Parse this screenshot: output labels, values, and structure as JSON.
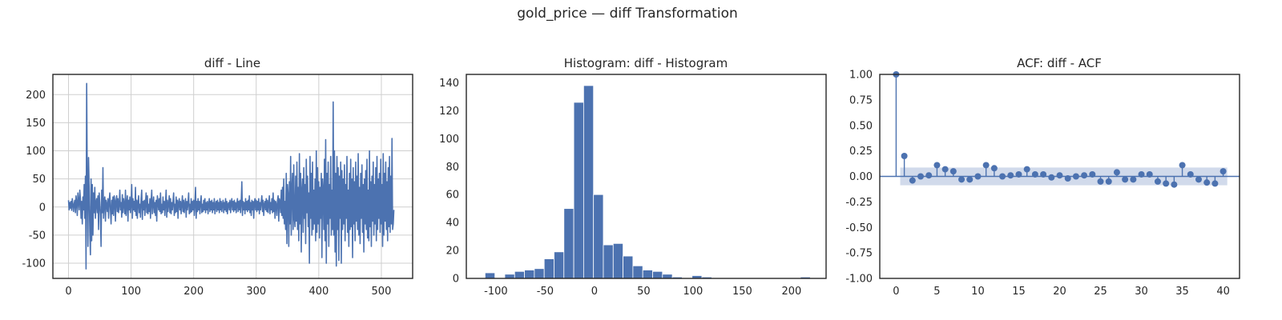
{
  "figure": {
    "suptitle": "gold_price — diff Transformation"
  },
  "colors": {
    "series": "#4c72b0",
    "band": "#c9d4e8",
    "frame": "#262626",
    "grid": "#cfcfcf"
  },
  "chart_data": [
    {
      "type": "line",
      "title": "diff - Line",
      "xlabel": "",
      "ylabel": "",
      "xlim": [
        -25,
        550
      ],
      "ylim": [
        -127,
        236
      ],
      "xticks": [
        0,
        100,
        200,
        300,
        400,
        500
      ],
      "yticks": [
        -100,
        -50,
        0,
        50,
        100,
        150,
        200
      ],
      "grid": true,
      "x_start": 0,
      "values": [
        12,
        -5,
        8,
        -2,
        10,
        -6,
        15,
        4,
        -8,
        6,
        12,
        -10,
        20,
        8,
        -15,
        25,
        10,
        -5,
        30,
        15,
        -20,
        10,
        -30,
        18,
        -5,
        40,
        -20,
        55,
        -110,
        220,
        35,
        -70,
        88,
        30,
        -45,
        -85,
        50,
        -60,
        40,
        -50,
        25,
        -10,
        35,
        -20,
        8,
        15,
        -10,
        20,
        -40,
        25,
        8,
        -15,
        -70,
        30,
        -10,
        70,
        -20,
        10,
        18,
        -25,
        12,
        5,
        -8,
        15,
        -20,
        10,
        25,
        -5,
        -30,
        12,
        -12,
        18,
        -15,
        20,
        10,
        -25,
        12,
        20,
        -8,
        15,
        -10,
        5,
        30,
        -5,
        8,
        -18,
        22,
        -10,
        15,
        5,
        -12,
        30,
        -15,
        8,
        20,
        -25,
        12,
        -5,
        18,
        -10,
        5,
        40,
        -20,
        15,
        -5,
        10,
        -8,
        35,
        -15,
        12,
        -20,
        8,
        20,
        -10,
        5,
        -18,
        15,
        30,
        -22,
        10,
        -5,
        12,
        -15,
        8,
        25,
        -10,
        20,
        -12,
        5,
        -8,
        15,
        -20,
        10,
        30,
        -12,
        5,
        18,
        -10,
        8,
        -15,
        12,
        -25,
        20,
        10,
        -5,
        15,
        -8,
        25,
        -12,
        5,
        -10,
        18,
        -5,
        10,
        -15,
        8,
        30,
        -18,
        12,
        -8,
        5,
        20,
        -10,
        15,
        -12,
        8,
        -5,
        10,
        25,
        -15,
        5,
        -10,
        18,
        -8,
        12,
        -20,
        8,
        15,
        -5,
        10,
        -12,
        5,
        20,
        -8,
        12,
        -10,
        5,
        15,
        -18,
        10,
        -5,
        8,
        25,
        -12,
        5,
        -10,
        15,
        -8,
        10,
        -5,
        12,
        -15,
        8,
        35,
        -20,
        10,
        -8,
        15,
        -5,
        10,
        -12,
        8,
        20,
        -10,
        5,
        -8,
        12,
        -5,
        15,
        -10,
        8,
        -5,
        10,
        -12,
        5,
        15,
        -8,
        10,
        -5,
        12,
        -10,
        8,
        -5,
        15,
        -12,
        5,
        10,
        -8,
        12,
        -5,
        8,
        -10,
        15,
        -5,
        10,
        -8,
        5,
        12,
        -10,
        8,
        -5,
        15,
        -8,
        10,
        -12,
        5,
        8,
        -5,
        12,
        -10,
        8,
        15,
        -5,
        10,
        -8,
        12,
        -5,
        8,
        -10,
        5,
        15,
        -8,
        10,
        -5,
        12,
        -10,
        8,
        45,
        -15,
        10,
        -5,
        8,
        -12,
        15,
        -5,
        10,
        -8,
        12,
        -5,
        20,
        -10,
        8,
        -15,
        12,
        -5,
        10,
        -20,
        8,
        15,
        -5,
        12,
        -8,
        10,
        -5,
        15,
        -12,
        8,
        -5,
        10,
        20,
        -8,
        12,
        -15,
        5,
        10,
        -5,
        15,
        -8,
        12,
        -10,
        5,
        20,
        -12,
        8,
        -5,
        15,
        -10,
        25,
        -8,
        12,
        -20,
        10,
        5,
        -15,
        12,
        20,
        -25,
        15,
        10,
        -10,
        30,
        -15,
        35,
        -20,
        50,
        -30,
        10,
        -40,
        60,
        -65,
        40,
        20,
        -70,
        45,
        -30,
        90,
        -50,
        30,
        60,
        -40,
        75,
        -20,
        -35,
        55,
        -25,
        80,
        -40,
        35,
        -60,
        95,
        -30,
        60,
        -80,
        30,
        50,
        -45,
        70,
        -20,
        40,
        -65,
        85,
        -10,
        55,
        -35,
        25,
        -100,
        90,
        -20,
        60,
        -50,
        80,
        -40,
        30,
        -30,
        50,
        -60,
        100,
        -45,
        70,
        -30,
        45,
        -55,
        35,
        -20,
        60,
        -90,
        50,
        30,
        -40,
        85,
        -60,
        120,
        -100,
        60,
        -30,
        80,
        -70,
        40,
        -20,
        90,
        -50,
        30,
        -40,
        187,
        -50,
        100,
        -80,
        60,
        -105,
        90,
        -40,
        70,
        -95,
        55,
        -20,
        80,
        -100,
        65,
        -40,
        50,
        -30,
        75,
        -60,
        40,
        -20,
        90,
        -45,
        30,
        -70,
        60,
        -40,
        85,
        -35,
        50,
        -90,
        70,
        -30,
        45,
        -60,
        80,
        -25,
        55,
        -40,
        95,
        -50,
        35,
        -65,
        60,
        -20,
        75,
        -45,
        40,
        -80,
        50,
        -30,
        65,
        -40,
        85,
        -55,
        30,
        -60,
        100,
        -35,
        45,
        -70,
        55,
        -25,
        80,
        -50,
        40,
        -30,
        70,
        -60,
        90,
        -40,
        50,
        -20,
        60,
        -45,
        85,
        -30,
        40,
        -70,
        95,
        -50,
        60,
        -25,
        80,
        -40,
        45,
        -60,
        70,
        -35,
        90,
        -45,
        55,
        -30,
        122,
        -40,
        -30,
        -5
      ]
    },
    {
      "type": "bar",
      "title": "Histogram: diff - Histogram",
      "xlabel": "",
      "ylabel": "",
      "xlim": [
        -130,
        235
      ],
      "ylim": [
        0,
        146
      ],
      "xticks": [
        -100,
        -50,
        0,
        50,
        100,
        150,
        200
      ],
      "yticks": [
        0,
        20,
        40,
        60,
        80,
        100,
        120,
        140
      ],
      "grid": false,
      "bin_edges": [
        -111,
        -101,
        -91,
        -81,
        -71,
        -61,
        -51,
        -41,
        -31,
        -21,
        -11,
        -1,
        9,
        19,
        29,
        39,
        49,
        59,
        69,
        79,
        89,
        99,
        109,
        119,
        129,
        139,
        149,
        159,
        169,
        179,
        189,
        199,
        209,
        219
      ],
      "counts": [
        4,
        0,
        3,
        5,
        6,
        7,
        14,
        19,
        50,
        126,
        138,
        60,
        24,
        25,
        16,
        9,
        6,
        5,
        3,
        1,
        0,
        2,
        1,
        0,
        0,
        0,
        0,
        0,
        0,
        0,
        0,
        0,
        1
      ]
    },
    {
      "type": "scatter",
      "title": "ACF: diff - ACF",
      "xlabel": "",
      "ylabel": "",
      "xlim": [
        -2,
        42
      ],
      "ylim": [
        -1,
        1
      ],
      "xticks": [
        0,
        5,
        10,
        15,
        20,
        25,
        30,
        35,
        40
      ],
      "yticks": [
        -1.0,
        -0.75,
        -0.5,
        -0.25,
        0.0,
        0.25,
        0.5,
        0.75,
        1.0
      ],
      "grid": false,
      "lags": [
        0,
        1,
        2,
        3,
        4,
        5,
        6,
        7,
        8,
        9,
        10,
        11,
        12,
        13,
        14,
        15,
        16,
        17,
        18,
        19,
        20,
        21,
        22,
        23,
        24,
        25,
        26,
        27,
        28,
        29,
        30,
        31,
        32,
        33,
        34,
        35,
        36,
        37,
        38,
        39,
        40
      ],
      "acf": [
        1.0,
        0.2,
        -0.04,
        0.0,
        0.01,
        0.11,
        0.07,
        0.05,
        -0.03,
        -0.03,
        0.0,
        0.11,
        0.08,
        0.0,
        0.01,
        0.02,
        0.07,
        0.02,
        0.02,
        -0.01,
        0.01,
        -0.02,
        0.0,
        0.01,
        0.02,
        -0.05,
        -0.05,
        0.04,
        -0.03,
        -0.03,
        0.02,
        0.02,
        -0.05,
        -0.07,
        -0.08,
        0.11,
        0.02,
        -0.03,
        -0.06,
        -0.07,
        0.05
      ],
      "confint_half_width": 0.087
    }
  ]
}
